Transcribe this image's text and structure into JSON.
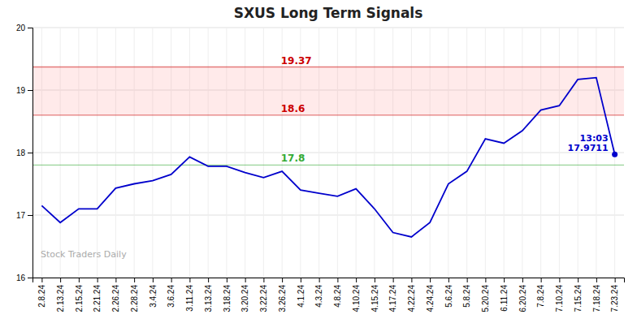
{
  "chart_data": {
    "type": "line",
    "title": "SXUS Long Term Signals",
    "categories": [
      "2.8.24",
      "2.13.24",
      "2.15.24",
      "2.21.24",
      "2.26.24",
      "2.28.24",
      "3.4.24",
      "3.6.24",
      "3.11.24",
      "3.13.24",
      "3.18.24",
      "3.20.24",
      "3.22.24",
      "3.26.24",
      "4.1.24",
      "4.3.24",
      "4.8.24",
      "4.10.24",
      "4.15.24",
      "4.17.24",
      "4.22.24",
      "4.24.24",
      "5.6.24",
      "5.8.24",
      "5.20.24",
      "6.11.24",
      "6.20.24",
      "7.8.24",
      "7.10.24",
      "7.15.24",
      "7.18.24",
      "7.23.24"
    ],
    "values": [
      17.15,
      16.88,
      17.1,
      17.1,
      17.43,
      17.5,
      17.55,
      17.65,
      17.93,
      17.78,
      17.78,
      17.68,
      17.6,
      17.7,
      17.4,
      17.35,
      17.3,
      17.42,
      17.1,
      16.72,
      16.65,
      16.88,
      17.5,
      17.7,
      18.22,
      18.15,
      18.35,
      18.68,
      18.75,
      19.17,
      19.2,
      17.9711
    ],
    "color": "#0000cc",
    "ylim": [
      16.0,
      20.0
    ],
    "yticks": [
      16,
      17,
      18,
      19,
      20
    ],
    "grid": true,
    "reference_lines": [
      {
        "value": 19.37,
        "color": "#cc0000"
      },
      {
        "value": 18.6,
        "color": "#cc0000"
      },
      {
        "value": 17.8,
        "color": "#33aa33"
      }
    ],
    "shaded_band": {
      "from": 18.6,
      "to": 19.37,
      "color": "#ff8888"
    },
    "annotations": [
      {
        "index": 31,
        "value": 17.9711,
        "text": [
          "13:03",
          "17.9711"
        ]
      }
    ],
    "watermark": "Stock Traders Daily"
  }
}
